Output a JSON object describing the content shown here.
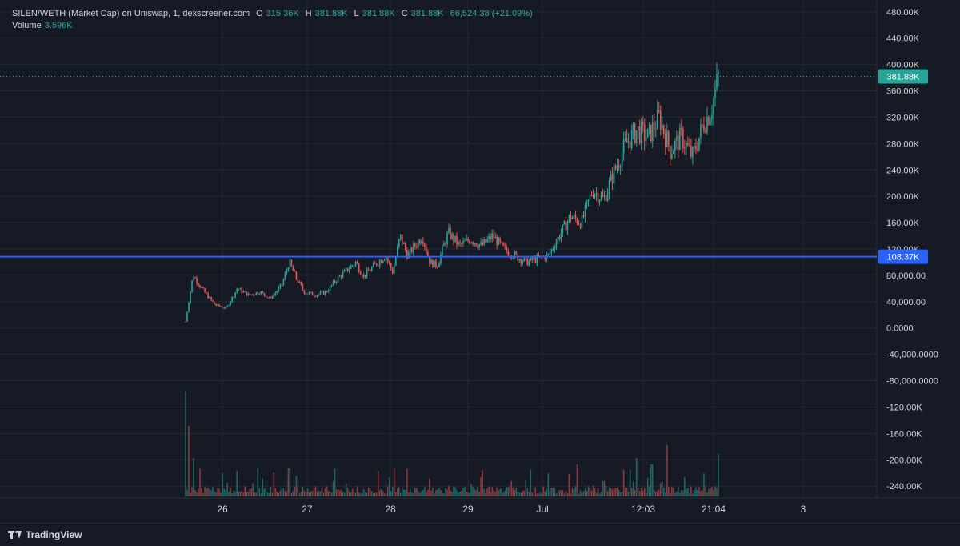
{
  "legend": {
    "symbol": "SILEN/WETH (Market Cap) on Uniswap, 1, dexscreener.com",
    "o_label": "O",
    "o": "315.36K",
    "h_label": "H",
    "h": "381.88K",
    "l_label": "L",
    "l": "381.88K",
    "c_label": "C",
    "c": "381.88K",
    "change": "66,524.38 (+21.09%)",
    "volume_label": "Volume",
    "volume": "3.596K"
  },
  "footer": {
    "brand": "TradingView"
  },
  "colors": {
    "background": "#161a25",
    "grid": "#242833",
    "up": "#26a69a",
    "down": "#ef5350",
    "hline": "#2962ff",
    "text": "#d1d4dc"
  },
  "price_tags": {
    "last": "381.88K",
    "hline": "108.37K"
  },
  "chart_data": {
    "type": "candlestick",
    "y_ticks": [
      {
        "value": 480000,
        "label": "480.00K"
      },
      {
        "value": 440000,
        "label": "440.00K"
      },
      {
        "value": 400000,
        "label": "400.00K"
      },
      {
        "value": 360000,
        "label": "360.00K"
      },
      {
        "value": 320000,
        "label": "320.00K"
      },
      {
        "value": 280000,
        "label": "280.00K"
      },
      {
        "value": 240000,
        "label": "240.00K"
      },
      {
        "value": 200000,
        "label": "200.00K"
      },
      {
        "value": 160000,
        "label": "160.00K"
      },
      {
        "value": 120000,
        "label": "120.00K"
      },
      {
        "value": 80000,
        "label": "80,000.00"
      },
      {
        "value": 40000,
        "label": "40,000.00"
      },
      {
        "value": 0,
        "label": "0.0000"
      },
      {
        "value": -40000,
        "label": "-40,000.0000"
      },
      {
        "value": -80000,
        "label": "-80,000.0000"
      },
      {
        "value": -120000,
        "label": "-120.00K"
      },
      {
        "value": -160000,
        "label": "-160.00K"
      },
      {
        "value": -200000,
        "label": "-200.00K"
      },
      {
        "value": -240000,
        "label": "-240.00K"
      }
    ],
    "x_ticks": [
      "26",
      "27",
      "28",
      "29",
      "Jul",
      "12:03",
      "21:04",
      "3"
    ],
    "last_price": 381880,
    "hline_price": 108370,
    "price_path": [
      [
        0,
        10000
      ],
      [
        0.02,
        80000
      ],
      [
        0.05,
        55000
      ],
      [
        0.08,
        35000
      ],
      [
        0.11,
        30000
      ],
      [
        0.14,
        60000
      ],
      [
        0.17,
        50000
      ],
      [
        0.2,
        55000
      ],
      [
        0.23,
        45000
      ],
      [
        0.26,
        65000
      ],
      [
        0.28,
        100000
      ],
      [
        0.3,
        75000
      ],
      [
        0.32,
        55000
      ],
      [
        0.35,
        50000
      ],
      [
        0.38,
        55000
      ],
      [
        0.41,
        75000
      ],
      [
        0.44,
        90000
      ],
      [
        0.46,
        100000
      ],
      [
        0.48,
        78000
      ],
      [
        0.51,
        95000
      ],
      [
        0.54,
        110000
      ],
      [
        0.56,
        85000
      ],
      [
        0.58,
        140000
      ],
      [
        0.6,
        110000
      ],
      [
        0.62,
        125000
      ],
      [
        0.64,
        140000
      ],
      [
        0.66,
        100000
      ],
      [
        0.68,
        95000
      ],
      [
        0.71,
        145000
      ],
      [
        0.74,
        125000
      ],
      [
        0.77,
        135000
      ],
      [
        0.8,
        125000
      ],
      [
        0.83,
        140000
      ],
      [
        0.86,
        120000
      ],
      [
        0.89,
        110000
      ],
      [
        0.92,
        100000
      ],
      [
        0.95,
        105000
      ],
      [
        0.98,
        110000
      ],
      [
        1.01,
        140000
      ],
      [
        1.04,
        170000
      ],
      [
        1.07,
        160000
      ],
      [
        1.1,
        210000
      ],
      [
        1.13,
        195000
      ],
      [
        1.16,
        240000
      ],
      [
        1.19,
        280000
      ],
      [
        1.22,
        300000
      ],
      [
        1.25,
        290000
      ],
      [
        1.28,
        320000
      ],
      [
        1.31,
        270000
      ],
      [
        1.34,
        290000
      ],
      [
        1.37,
        260000
      ],
      [
        1.4,
        310000
      ],
      [
        1.42,
        330000
      ],
      [
        1.44,
        381880
      ]
    ],
    "volume_spikes": [
      [
        0.0,
        0.82
      ],
      [
        0.01,
        0.55
      ],
      [
        0.02,
        0.3
      ],
      [
        0.04,
        0.22
      ],
      [
        0.1,
        0.18
      ],
      [
        0.14,
        0.2
      ],
      [
        0.21,
        0.14
      ],
      [
        0.28,
        0.22
      ],
      [
        0.3,
        0.16
      ],
      [
        0.4,
        0.12
      ],
      [
        0.52,
        0.2
      ],
      [
        0.6,
        0.22
      ],
      [
        0.66,
        0.14
      ],
      [
        0.8,
        0.15
      ],
      [
        0.88,
        0.12
      ],
      [
        0.98,
        0.18
      ],
      [
        1.06,
        0.25
      ],
      [
        1.13,
        0.12
      ],
      [
        1.22,
        0.3
      ],
      [
        1.26,
        0.25
      ],
      [
        1.3,
        0.4
      ],
      [
        1.35,
        0.15
      ],
      [
        1.4,
        0.18
      ],
      [
        1.44,
        0.33
      ]
    ]
  }
}
